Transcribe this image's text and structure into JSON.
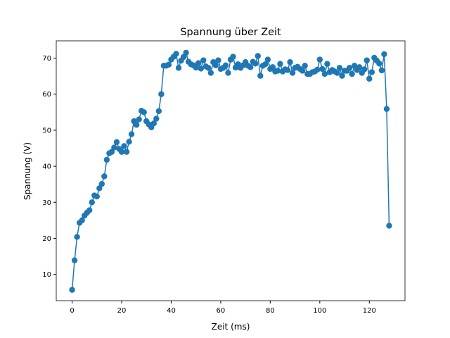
{
  "chart_data": {
    "type": "line",
    "title": "Spannung über Zeit",
    "xlabel": "Zeit (ms)",
    "ylabel": "Spannung (V)",
    "xlim": [
      -6.4,
      134.4
    ],
    "ylim": [
      2.7,
      74.8
    ],
    "xticks": [
      0,
      20,
      40,
      60,
      80,
      100,
      120
    ],
    "yticks": [
      10,
      20,
      30,
      40,
      50,
      60,
      70
    ],
    "grid": false,
    "legend": "none",
    "marker": "circle",
    "color": "#1f77b4",
    "series": [
      {
        "x": [
          0,
          1,
          2,
          3,
          4,
          5,
          6,
          7,
          8,
          9,
          10,
          11,
          12,
          13,
          14,
          15,
          16,
          17,
          18,
          19,
          20,
          21,
          22,
          23,
          24,
          25,
          26,
          27,
          28,
          29,
          30,
          31,
          32,
          33,
          34,
          35,
          36,
          37,
          38,
          39,
          40,
          41,
          42,
          43,
          44,
          45,
          46,
          47,
          48,
          49,
          50,
          51,
          52,
          53,
          54,
          55,
          56,
          57,
          58,
          59,
          60,
          61,
          62,
          63,
          64,
          65,
          66,
          67,
          68,
          69,
          70,
          71,
          72,
          73,
          74,
          75,
          76,
          77,
          78,
          79,
          80,
          81,
          82,
          83,
          84,
          85,
          86,
          87,
          88,
          89,
          90,
          91,
          92,
          93,
          94,
          95,
          96,
          97,
          98,
          99,
          100,
          101,
          102,
          103,
          104,
          105,
          106,
          107,
          108,
          109,
          110,
          111,
          112,
          113,
          114,
          115,
          116,
          117,
          118,
          119,
          120,
          121,
          122,
          123,
          124,
          125,
          126,
          127,
          128
        ],
        "y": [
          5.7,
          13.9,
          20.4,
          24.3,
          25.0,
          26.3,
          27.1,
          27.8,
          30.0,
          31.9,
          31.6,
          33.9,
          35.1,
          37.2,
          41.8,
          43.6,
          44.0,
          45.2,
          46.7,
          44.8,
          44.0,
          45.6,
          44.0,
          46.8,
          48.9,
          52.5,
          51.5,
          53.0,
          55.4,
          55.0,
          52.5,
          51.6,
          50.8,
          51.9,
          53.2,
          55.3,
          60.0,
          67.9,
          67.9,
          68.2,
          69.6,
          70.4,
          71.2,
          67.3,
          69.3,
          70.3,
          71.5,
          69.0,
          68.3,
          68.0,
          67.4,
          68.6,
          67.1,
          69.4,
          67.7,
          67.3,
          65.9,
          68.9,
          68.0,
          69.4,
          67.0,
          67.3,
          68.0,
          65.9,
          69.6,
          70.4,
          67.4,
          68.3,
          67.3,
          68.0,
          68.9,
          67.9,
          67.5,
          69.0,
          68.5,
          70.6,
          65.1,
          67.9,
          68.3,
          69.6,
          67.0,
          67.5,
          66.3,
          66.5,
          68.4,
          66.3,
          66.9,
          66.7,
          68.9,
          65.9,
          67.3,
          67.6,
          67.0,
          66.5,
          67.9,
          65.6,
          65.6,
          66.1,
          66.3,
          66.8,
          69.6,
          67.0,
          65.6,
          68.4,
          66.1,
          66.7,
          66.3,
          65.9,
          67.3,
          65.1,
          66.5,
          66.5,
          67.3,
          65.6,
          67.9,
          66.7,
          67.5,
          65.9,
          66.9,
          69.4,
          64.3,
          66.1,
          70.1,
          69.3,
          68.5,
          66.6,
          71.1,
          55.9,
          23.5
        ]
      }
    ]
  }
}
